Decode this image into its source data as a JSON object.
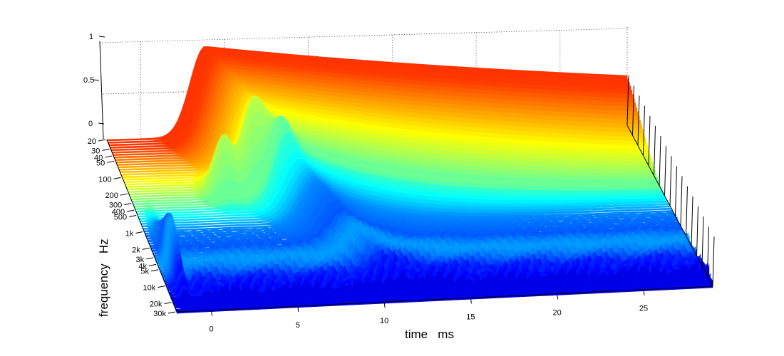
{
  "chart_data": {
    "type": "surface",
    "title": "",
    "xlabel": "time   ms",
    "ylabel": "frequency   Hz",
    "zlabel": "",
    "x_ticks": [
      0,
      5,
      10,
      15,
      20,
      25
    ],
    "x_tick_labels": [
      "0",
      "5",
      "10",
      "15",
      "20",
      "25"
    ],
    "xlim": [
      -2,
      29
    ],
    "y_ticks": [
      20,
      30,
      40,
      50,
      100,
      200,
      300,
      400,
      500,
      1000,
      2000,
      3000,
      4000,
      5000,
      10000,
      20000,
      30000
    ],
    "y_tick_labels": [
      "20",
      "30",
      "40",
      "50",
      "100",
      "200",
      "300",
      "400",
      "500",
      "1k",
      "2k",
      "3k",
      "4k",
      "5k",
      "10k",
      "20k",
      "30k"
    ],
    "y_scale": "log",
    "ylim": [
      20,
      30000
    ],
    "z_ticks": [
      0,
      0.5,
      1
    ],
    "z_tick_labels": [
      "0",
      "0.5",
      "1"
    ],
    "zlim": [
      0,
      1
    ],
    "colormap": "jet",
    "grid": true,
    "features": [
      {
        "name": "low-frequency ridge",
        "time_ms": 4.5,
        "freq_hz": 30,
        "magnitude": 1.0
      },
      {
        "name": "mid-frequency peak",
        "time_ms": 3.6,
        "freq_hz": 200,
        "magnitude": 0.85
      },
      {
        "name": "mid-frequency peak",
        "time_ms": 5.2,
        "freq_hz": 200,
        "magnitude": 0.85
      },
      {
        "name": "direct sound",
        "time_ms": -1.2,
        "freq_hz": 4000,
        "magnitude": 0.7
      }
    ]
  }
}
